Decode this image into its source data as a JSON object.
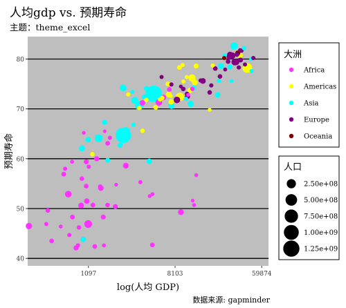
{
  "chart_data": {
    "type": "scatter",
    "title": "人均gdp vs. 预期寿命",
    "subtitle": "主题：theme_excel",
    "caption": "数据来源: gapminder",
    "xlabel": "log(人均 GDP)",
    "ylabel": "预期寿命",
    "x_scale": "log",
    "xlim": [
      270,
      70000
    ],
    "ylim": [
      38.5,
      84.5
    ],
    "x_ticks": [
      1097,
      8103,
      59874
    ],
    "x_tick_labels": [
      "1097",
      "8103",
      "59874"
    ],
    "y_ticks": [
      40,
      50,
      60,
      70,
      80
    ],
    "y_tick_labels": [
      "40",
      "50",
      "60",
      "70",
      "80"
    ],
    "grid": "horizontal",
    "legend_placement": "right",
    "color_legend": {
      "title": "大洲",
      "entries": [
        {
          "label": "Africa",
          "color": "#ff33ff"
        },
        {
          "label": "Americas",
          "color": "#ffff00"
        },
        {
          "label": "Asia",
          "color": "#00ffff"
        },
        {
          "label": "Europe",
          "color": "#800080"
        },
        {
          "label": "Oceania",
          "color": "#800000"
        }
      ]
    },
    "size_legend": {
      "title": "人口",
      "entries": [
        {
          "label": "2.50e+08",
          "value": 250000000
        },
        {
          "label": "5.00e+08",
          "value": 500000000
        },
        {
          "label": "7.50e+08",
          "value": 750000000
        },
        {
          "label": "1.00e+09",
          "value": 1000000000
        },
        {
          "label": "1.25e+09",
          "value": 1250000000
        }
      ]
    },
    "series": [
      {
        "name": "Africa",
        "color": "#ff33ff",
        "points": [
          [
            6220,
            72.3,
            33
          ],
          [
            4797,
            42.7,
            12
          ],
          [
            1441,
            54.4,
            8
          ],
          [
            12570,
            50.7,
            1.6
          ],
          [
            1217,
            50.7,
            14
          ],
          [
            430,
            49.6,
            8
          ],
          [
            2042,
            50.4,
            18
          ],
          [
            706,
            44.7,
            4.4
          ],
          [
            1704,
            50.7,
            10
          ],
          [
            986,
            65.2,
            0.7
          ],
          [
            278,
            46.5,
            65
          ],
          [
            3633,
            55.3,
            3.8
          ],
          [
            1544,
            48.3,
            18
          ],
          [
            2082,
            54.8,
            0.5
          ],
          [
            5581,
            71.3,
            80
          ],
          [
            12154,
            51.6,
            0.55
          ],
          [
            641,
            58,
            4.9
          ],
          [
            690,
            52.9,
            77
          ],
          [
            13206,
            56.7,
            1.45
          ],
          [
            753,
            59.4,
            1.7
          ],
          [
            1327,
            60,
            22
          ],
          [
            943,
            56,
            9.9
          ],
          [
            579,
            46.4,
            1.5
          ],
          [
            1463,
            54.1,
            35
          ],
          [
            1569,
            42.6,
            2
          ],
          [
            415,
            46.9,
            3.2
          ],
          [
            12057,
            74,
            6
          ],
          [
            1045,
            59.4,
            19
          ],
          [
            759,
            48.3,
            13
          ],
          [
            1042,
            54.5,
            12
          ],
          [
            1803,
            64.2,
            3.3
          ],
          [
            10957,
            72.8,
            1.25
          ],
          [
            3820,
            71.2,
            33
          ],
          [
            824,
            42.1,
            20
          ],
          [
            4811,
            52.9,
            2
          ],
          [
            620,
            56.9,
            12
          ],
          [
            1091,
            46.9,
            135
          ],
          [
            882,
            46.2,
            9
          ],
          [
            1598,
            65.5,
            0.2
          ],
          [
            1712,
            63.1,
            12
          ],
          [
            862,
            42.6,
            6
          ],
          [
            926,
            50.6,
            40
          ],
          [
            9270,
            49.3,
            44
          ],
          [
            2602,
            58.6,
            42
          ],
          [
            4513,
            52.5,
            1.1
          ],
          [
            1107,
            58.4,
            5.7
          ],
          [
            7093,
            73.9,
            10
          ],
          [
            1056,
            51.5,
            29
          ],
          [
            1271,
            42.4,
            11
          ],
          [
            470,
            43.5,
            12
          ]
        ]
      },
      {
        "name": "Americas",
        "color": "#ffff00",
        "points": [
          [
            12779,
            75.3,
            40
          ],
          [
            3822,
            65.6,
            9
          ],
          [
            9066,
            72.4,
            190
          ],
          [
            36319,
            80.7,
            33
          ],
          [
            13172,
            78.6,
            16
          ],
          [
            7007,
            72.9,
            44
          ],
          [
            9645,
            78.8,
            4.1
          ],
          [
            8948,
            78.3,
            11
          ],
          [
            6025,
            72.2,
            9.3
          ],
          [
            6873,
            74.99,
            13.8
          ],
          [
            5728,
            71.9,
            6.9
          ],
          [
            5186,
            70.3,
            12.6
          ],
          [
            1202,
            60.9,
            8.5
          ],
          [
            3548,
            70.2,
            7.5
          ],
          [
            7321,
            72.6,
            2.8
          ],
          [
            11978,
            76.2,
            108
          ],
          [
            2749,
            72.9,
            5.7
          ],
          [
            9809,
            75.5,
            3.2
          ],
          [
            4173,
            71.8,
            6.7
          ],
          [
            7409,
            71.4,
            28.7
          ],
          [
            19328,
            78.7,
            3.9
          ],
          [
            18009,
            69.8,
            1.06
          ],
          [
            42952,
            78.2,
            301
          ],
          [
            10611,
            76.4,
            3.4
          ],
          [
            11416,
            73.7,
            26
          ]
        ]
      },
      {
        "name": "Asia",
        "color": "#00ffff",
        "points": [
          [
            975,
            43.8,
            31.9
          ],
          [
            29796,
            75.6,
            0.7
          ],
          [
            1391,
            64.1,
            150
          ],
          [
            1714,
            59.7,
            14
          ],
          [
            4959,
            73,
            1319
          ],
          [
            39725,
            82.2,
            6.98
          ],
          [
            2452,
            64.7,
            1110
          ],
          [
            3541,
            70.7,
            223
          ],
          [
            11606,
            71,
            69
          ],
          [
            4471,
            59.5,
            27.5
          ],
          [
            25523,
            80.7,
            6.4
          ],
          [
            31656,
            82.6,
            127
          ],
          [
            4519,
            72.5,
            6
          ],
          [
            1593,
            67.3,
            23
          ],
          [
            23348,
            78.6,
            49
          ],
          [
            47307,
            77.6,
            2.5
          ],
          [
            10461,
            72,
            3.9
          ],
          [
            12452,
            74.2,
            24.8
          ],
          [
            3095,
            66.8,
            2.9
          ],
          [
            944,
            62.1,
            47.8
          ],
          [
            1091,
            63.8,
            28.9
          ],
          [
            22316,
            75.6,
            3.2
          ],
          [
            2606,
            65.5,
            169
          ],
          [
            3190,
            71.7,
            91
          ],
          [
            21655,
            72.8,
            27.6
          ],
          [
            47143,
            80,
            4.6
          ],
          [
            3970,
            72.4,
            20.4
          ],
          [
            4185,
            74.1,
            19.3
          ],
          [
            28718,
            78.4,
            23.2
          ],
          [
            7458,
            70.6,
            65
          ],
          [
            2442,
            74.2,
            85
          ],
          [
            3026,
            73.4,
            4
          ],
          [
            2281,
            62.7,
            22.2
          ]
        ]
      },
      {
        "name": "Europe",
        "color": "#800080",
        "points": [
          [
            5937,
            76.4,
            3.6
          ],
          [
            36126,
            79.8,
            8.2
          ],
          [
            33693,
            79.4,
            10.4
          ],
          [
            7446,
            74.9,
            4.6
          ],
          [
            10681,
            73,
            7.3
          ],
          [
            14619,
            75.7,
            4.5
          ],
          [
            22833,
            76.5,
            10.2
          ],
          [
            35278,
            78.3,
            5.5
          ],
          [
            33207,
            79.3,
            5.2
          ],
          [
            30470,
            80.7,
            61
          ],
          [
            32170,
            79.4,
            82
          ],
          [
            27538,
            79.5,
            10.7
          ],
          [
            18009,
            73.3,
            10
          ],
          [
            36181,
            81.8,
            0.3
          ],
          [
            40676,
            78.9,
            4.1
          ],
          [
            28570,
            80.5,
            58
          ],
          [
            9254,
            74.5,
            0.68
          ],
          [
            36798,
            79.8,
            16.6
          ],
          [
            49357,
            80.2,
            4.6
          ],
          [
            15390,
            75.6,
            38.5
          ],
          [
            20510,
            78.1,
            10.6
          ],
          [
            10808,
            72.5,
            22.3
          ],
          [
            9786,
            74,
            10.1
          ],
          [
            18678,
            74.7,
            5.4
          ],
          [
            25768,
            77.9,
            2
          ],
          [
            28821,
            80.9,
            40.4
          ],
          [
            33860,
            80.9,
            9
          ],
          [
            37506,
            81.7,
            7.6
          ],
          [
            8458,
            71.8,
            71
          ],
          [
            33203,
            79.4,
            60.8
          ]
        ]
      },
      {
        "name": "Oceania",
        "color": "#800000",
        "points": [
          [
            34435,
            81.2,
            20.4
          ],
          [
            25185,
            80.2,
            4.1
          ]
        ]
      }
    ]
  }
}
